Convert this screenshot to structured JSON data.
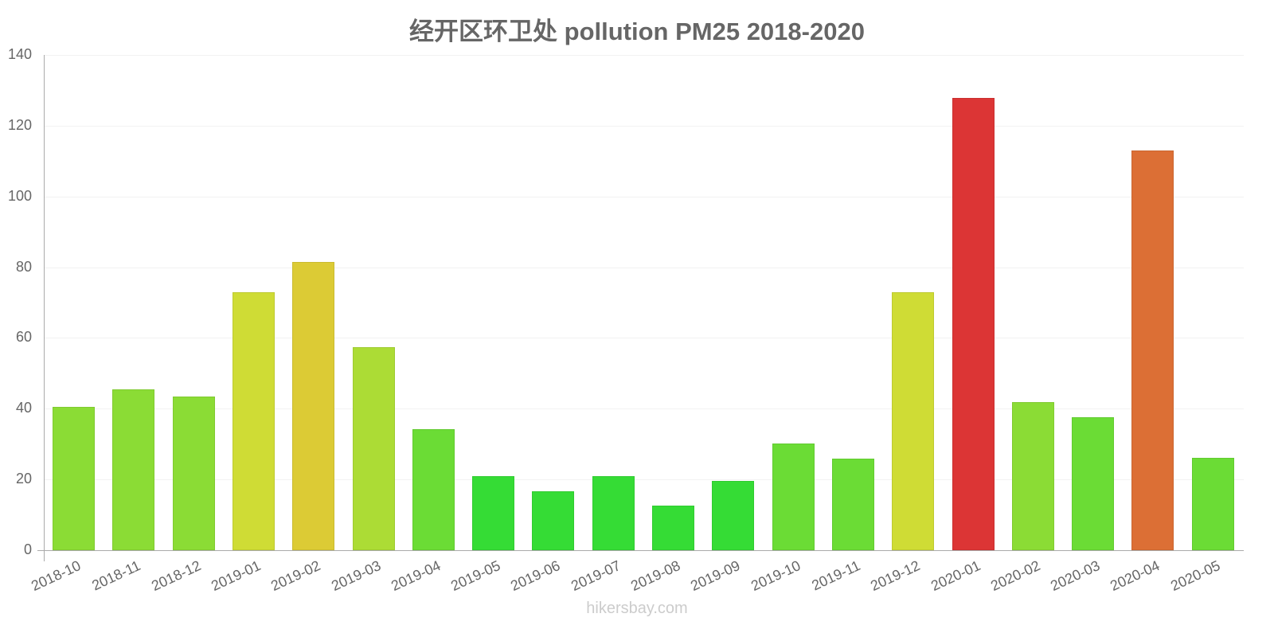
{
  "chart_data": {
    "type": "bar",
    "title": "经开区环卫处 pollution PM25 2018-2020",
    "xlabel": "",
    "ylabel": "",
    "ylim": [
      0,
      140
    ],
    "yticks": [
      0,
      20,
      40,
      60,
      80,
      100,
      120,
      140
    ],
    "grid": true,
    "legend": null,
    "categories": [
      "2018-10",
      "2018-11",
      "2018-12",
      "2019-01",
      "2019-02",
      "2019-03",
      "2019-04",
      "2019-05",
      "2019-06",
      "2019-07",
      "2019-08",
      "2019-09",
      "2019-10",
      "2019-11",
      "2019-12",
      "2020-01",
      "2020-02",
      "2020-03",
      "2020-04",
      "2020-05"
    ],
    "values": [
      40.5,
      45.5,
      43.4,
      72.9,
      81.5,
      57.4,
      34.2,
      20.9,
      16.7,
      20.9,
      12.6,
      19.6,
      30.2,
      25.9,
      72.9,
      127.8,
      41.9,
      37.6,
      113,
      26.1
    ],
    "colors": [
      "#8bdc35",
      "#8bdc35",
      "#8bdc35",
      "#cfdc35",
      "#dccb35",
      "#acdc35",
      "#6bdc35",
      "#35dc35",
      "#35dc35",
      "#35dc35",
      "#35dc35",
      "#35dc35",
      "#6bdc35",
      "#6bdc35",
      "#cfdc35",
      "#dc3535",
      "#8bdc35",
      "#6bdc35",
      "#dc6f35",
      "#6bdc35"
    ]
  },
  "footer": {
    "credit": "hikersbay.com"
  }
}
